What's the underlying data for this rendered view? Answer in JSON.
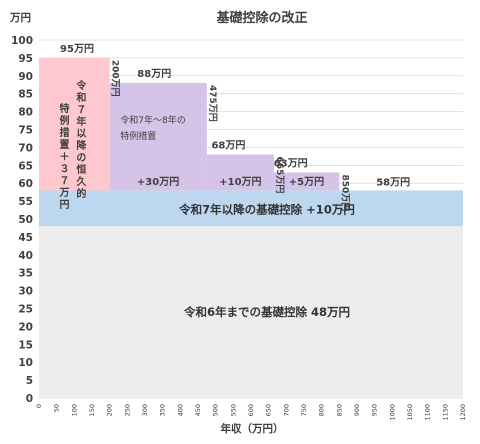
{
  "chart_data": {
    "type": "area",
    "title": "基礎控除の改正",
    "ylabel": "万円",
    "xlabel": "年収（万円）",
    "xlim": [
      0,
      1200
    ],
    "ylim": [
      0,
      100
    ],
    "yticks": [
      0,
      5,
      10,
      15,
      20,
      25,
      30,
      35,
      40,
      45,
      50,
      55,
      60,
      65,
      70,
      75,
      80,
      85,
      90,
      95,
      100
    ],
    "xticks": [
      0,
      50,
      100,
      150,
      200,
      250,
      300,
      350,
      400,
      450,
      500,
      550,
      600,
      650,
      700,
      750,
      800,
      850,
      900,
      950,
      1000,
      1050,
      1100,
      1150,
      1200
    ],
    "grid": true,
    "colors": {
      "base": "#ededed",
      "band": "#bdd7ee",
      "special": "#d5c3e8",
      "permanent": "#ffc7ce",
      "grid": "#d9d9d9"
    },
    "series": [
      {
        "name": "令和6年までの基礎控除 48万円",
        "x_start": 0,
        "x_end": 1200,
        "value": 48
      },
      {
        "name": "令和7年以降の基礎控除 +10万円",
        "x_start": 0,
        "x_end": 1200,
        "value": 10
      },
      {
        "name": "令和7年〜8年の特例措置",
        "segments": [
          {
            "x_start": 200,
            "x_end": 475,
            "value": 30
          },
          {
            "x_start": 475,
            "x_end": 665,
            "value": 10
          },
          {
            "x_start": 665,
            "x_end": 850,
            "value": 5
          }
        ]
      },
      {
        "name": "令和７年以降の恒久的特例措置＋３７万円",
        "x_start": 0,
        "x_end": 200,
        "value": 37
      }
    ],
    "totals": [
      {
        "x_start": 0,
        "x_end": 200,
        "value": 95,
        "label": "95万円"
      },
      {
        "x_start": 200,
        "x_end": 475,
        "value": 88,
        "label": "88万円"
      },
      {
        "x_start": 475,
        "x_end": 665,
        "value": 68,
        "label": "68万円"
      },
      {
        "x_start": 665,
        "x_end": 850,
        "value": 63,
        "label": "63万円"
      },
      {
        "x_start": 850,
        "x_end": 1200,
        "value": 58,
        "label": "58万円"
      }
    ],
    "boundaries": [
      {
        "x": 200,
        "label": "200万円"
      },
      {
        "x": 475,
        "label": "475万円"
      },
      {
        "x": 665,
        "label": "665万円"
      },
      {
        "x": 850,
        "label": "850万円"
      }
    ],
    "annotations": {
      "base": "令和6年までの基礎控除 48万円",
      "band": "令和7年以降の基礎控除 +10万円",
      "special_lines": [
        "令和7年～8年の",
        "特例措置"
      ],
      "special_increments": [
        "+30万円",
        "+10万円",
        "+5万円"
      ],
      "permanent_col1": "令和７年以降の恒久的",
      "permanent_col2": "特例措置＋３７万円"
    }
  }
}
